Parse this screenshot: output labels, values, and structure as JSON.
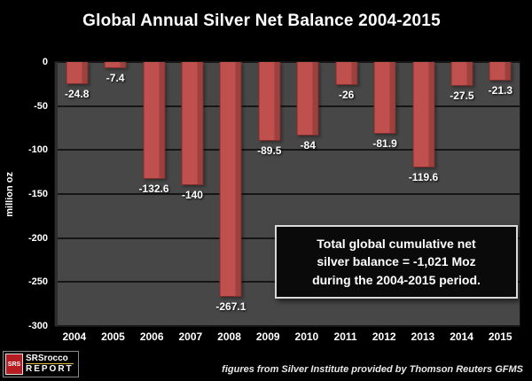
{
  "title": "Global Annual Silver Net Balance 2004-2015",
  "annotation": {
    "lines": [
      "Total global cumulative net",
      "silver balance = -1,021 Moz",
      "during the 2004-2015 period."
    ]
  },
  "footer": "figures from Silver Institute provided by Thomson Reuters GFMS",
  "logo": {
    "badge": "SRS",
    "line1": "SRSrocco",
    "line2": "REPORT"
  },
  "colors": {
    "background": "#000000",
    "plot_bg": "#474747",
    "gridline": "#161616",
    "bar": "#c0504d",
    "bar_edge": "#7e2f2c",
    "text": "#ffffff"
  },
  "chart_data": {
    "type": "bar",
    "title": "Global Annual Silver Net Balance 2004-2015",
    "categories": [
      "2004",
      "2005",
      "2006",
      "2007",
      "2008",
      "2009",
      "2010",
      "2011",
      "2012",
      "2013",
      "2014",
      "2015"
    ],
    "values": [
      -24.8,
      -7.4,
      -132.6,
      -140,
      -267.1,
      -89.5,
      -84,
      -26,
      -81.9,
      -119.6,
      -27.5,
      -21.3
    ],
    "value_labels": [
      "-24.8",
      "-7.4",
      "-132.6",
      "-140",
      "-267.1",
      "-89.5",
      "-84",
      "-26",
      "-81.9",
      "-119.6",
      "-27.5",
      "-21.3"
    ],
    "xlabel": "",
    "ylabel": "million oz",
    "ylim": [
      -300,
      0
    ],
    "yticks": [
      0,
      -50,
      -100,
      -150,
      -200,
      -250,
      -300
    ],
    "grid": true,
    "legend": false
  }
}
